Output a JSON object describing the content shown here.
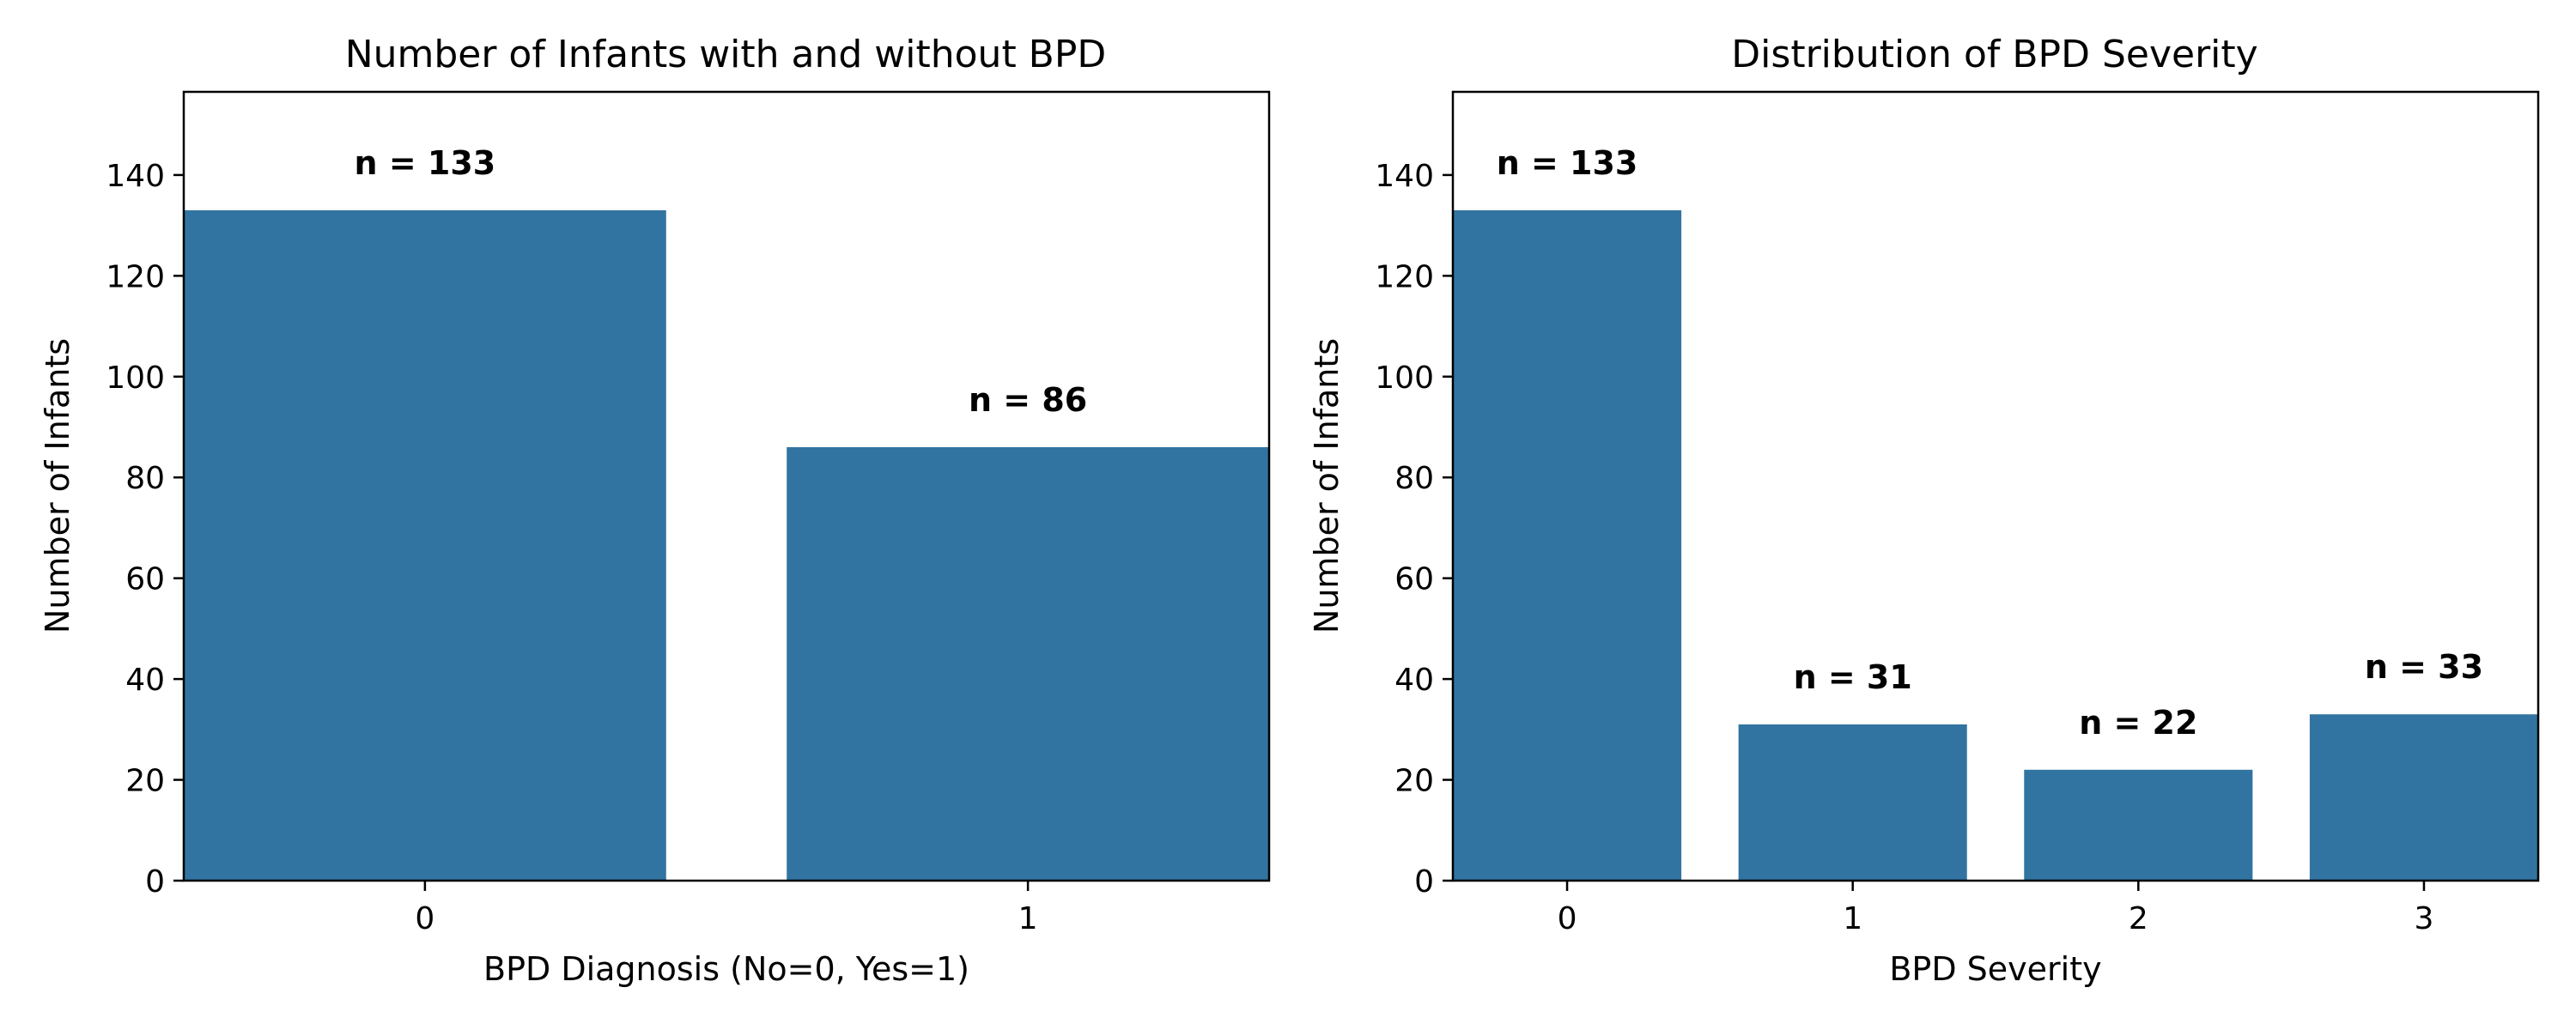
{
  "chart_data": [
    {
      "type": "bar",
      "title": "Number of Infants with and without BPD",
      "xlabel": "BPD Diagnosis (No=0, Yes=1)",
      "ylabel": "Number of Infants",
      "categories": [
        "0",
        "1"
      ],
      "values": [
        133,
        86
      ],
      "bar_labels": [
        "n = 133",
        "n = 86"
      ],
      "ylim": [
        0,
        156.5
      ],
      "yticks": [
        0,
        20,
        40,
        60,
        80,
        100,
        120,
        140
      ],
      "bar_color": "#3274a1",
      "grid": false
    },
    {
      "type": "bar",
      "title": "Distribution of BPD Severity",
      "xlabel": "BPD Severity",
      "ylabel": "Number of Infants",
      "categories": [
        "0",
        "1",
        "2",
        "3"
      ],
      "values": [
        133,
        31,
        22,
        33
      ],
      "bar_labels": [
        "n = 133",
        "n = 31",
        "n = 22",
        "n = 33"
      ],
      "ylim": [
        0,
        156.5
      ],
      "yticks": [
        0,
        20,
        40,
        60,
        80,
        100,
        120,
        140
      ],
      "bar_color": "#3274a1",
      "grid": false
    }
  ]
}
